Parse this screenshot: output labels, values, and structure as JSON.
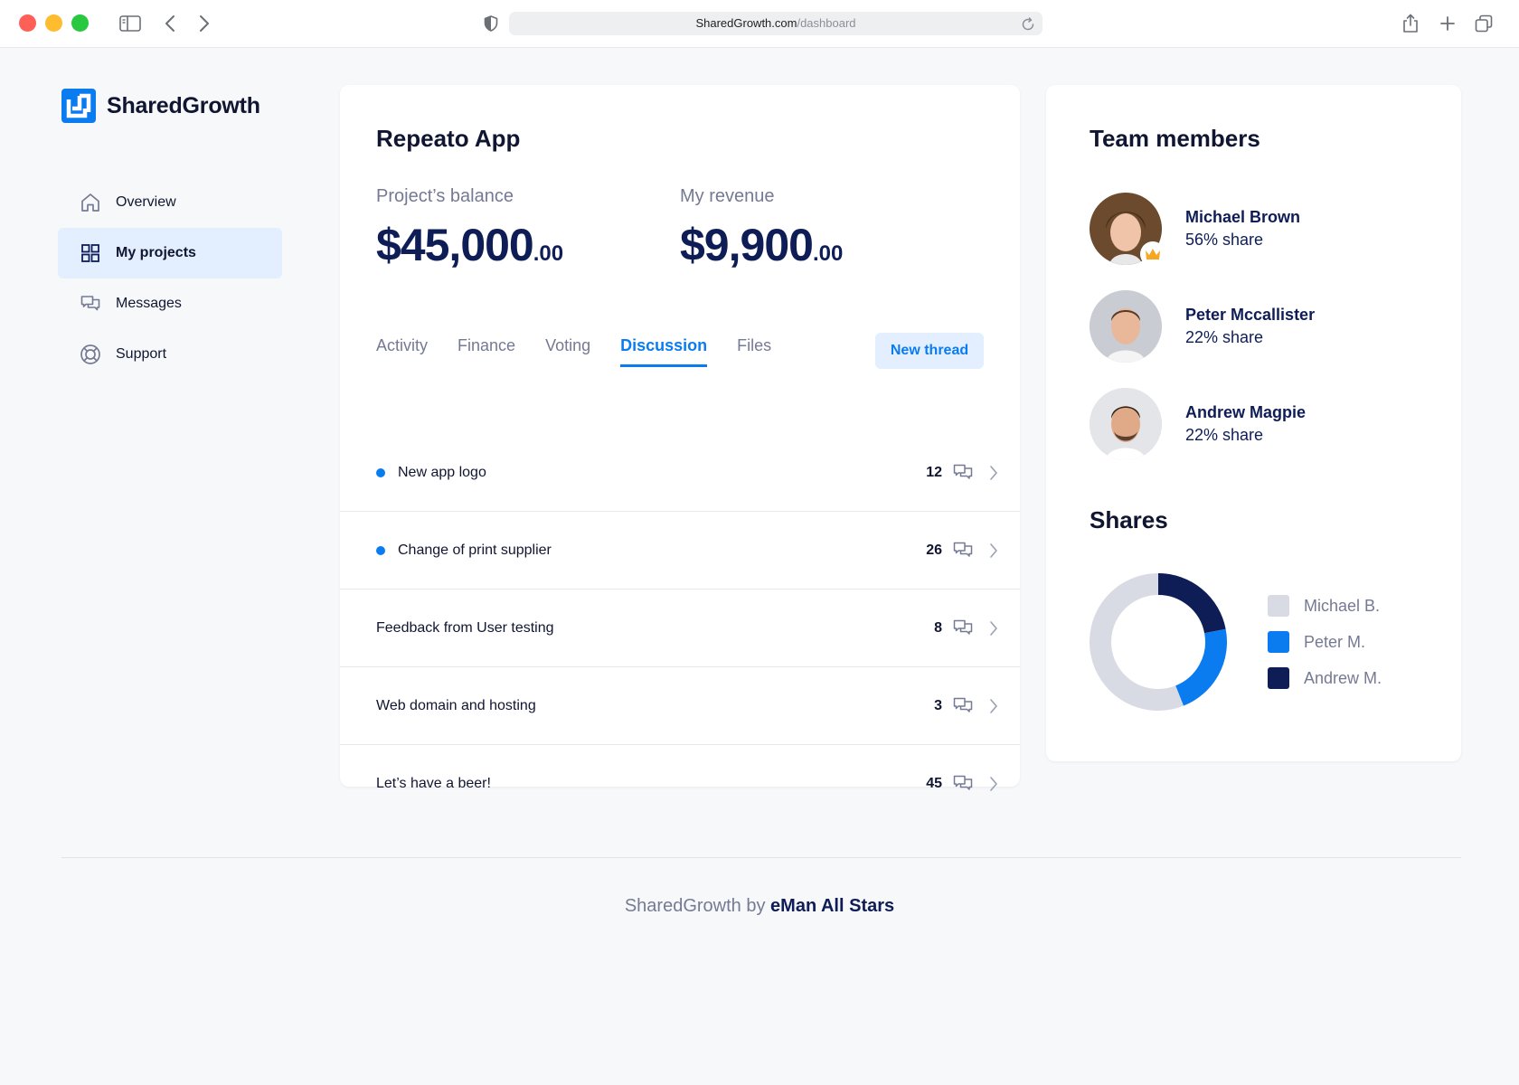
{
  "browser": {
    "url_domain": "SharedGrowth.com",
    "url_path": "/dashboard"
  },
  "app": {
    "name": "SharedGrowth"
  },
  "sidebar": {
    "items": [
      {
        "label": "Overview",
        "icon": "home-icon",
        "active": false
      },
      {
        "label": "My projects",
        "icon": "grid-icon",
        "active": true
      },
      {
        "label": "Messages",
        "icon": "chat-icon",
        "active": false
      },
      {
        "label": "Support",
        "icon": "lifebuoy-icon",
        "active": false
      }
    ]
  },
  "project": {
    "title": "Repeato App",
    "balance_label": "Project’s balance",
    "balance_main": "$45,000",
    "balance_cents": ".00",
    "revenue_label": "My revenue",
    "revenue_main": "$9,900",
    "revenue_cents": ".00",
    "tabs": [
      {
        "label": "Activity",
        "active": false
      },
      {
        "label": "Finance",
        "active": false
      },
      {
        "label": "Voting",
        "active": false
      },
      {
        "label": "Discussion",
        "active": true
      },
      {
        "label": "Files",
        "active": false
      }
    ],
    "new_thread_label": "New thread",
    "threads": [
      {
        "title": "New app logo",
        "count": "12",
        "unread": true
      },
      {
        "title": "Change of print supplier",
        "count": "26",
        "unread": true
      },
      {
        "title": "Feedback from User testing",
        "count": "8",
        "unread": false
      },
      {
        "title": "Web domain and hosting",
        "count": "3",
        "unread": false
      },
      {
        "title": "Let’s have a beer!",
        "count": "45",
        "unread": false
      }
    ]
  },
  "team": {
    "title": "Team members",
    "members": [
      {
        "name": "Michael Brown",
        "share": "56% share",
        "owner": true
      },
      {
        "name": "Peter Mccallister",
        "share": "22% share",
        "owner": false
      },
      {
        "name": "Andrew Magpie",
        "share": "22% share",
        "owner": false
      }
    ]
  },
  "shares": {
    "title": "Shares",
    "legend": [
      {
        "label": "Michael B.",
        "color": "#d9dbe4"
      },
      {
        "label": "Peter M.",
        "color": "#0a7cf0"
      },
      {
        "label": "Andrew M.",
        "color": "#0f1d57"
      }
    ]
  },
  "chart_data": {
    "type": "pie",
    "categories": [
      "Michael B.",
      "Peter M.",
      "Andrew M."
    ],
    "values": [
      56,
      22,
      22
    ],
    "colors": [
      "#d9dbe4",
      "#0a7cf0",
      "#0f1d57"
    ],
    "title": "Shares"
  },
  "footer": {
    "prefix": "SharedGrowth by",
    "brand": "eMan All Stars"
  }
}
